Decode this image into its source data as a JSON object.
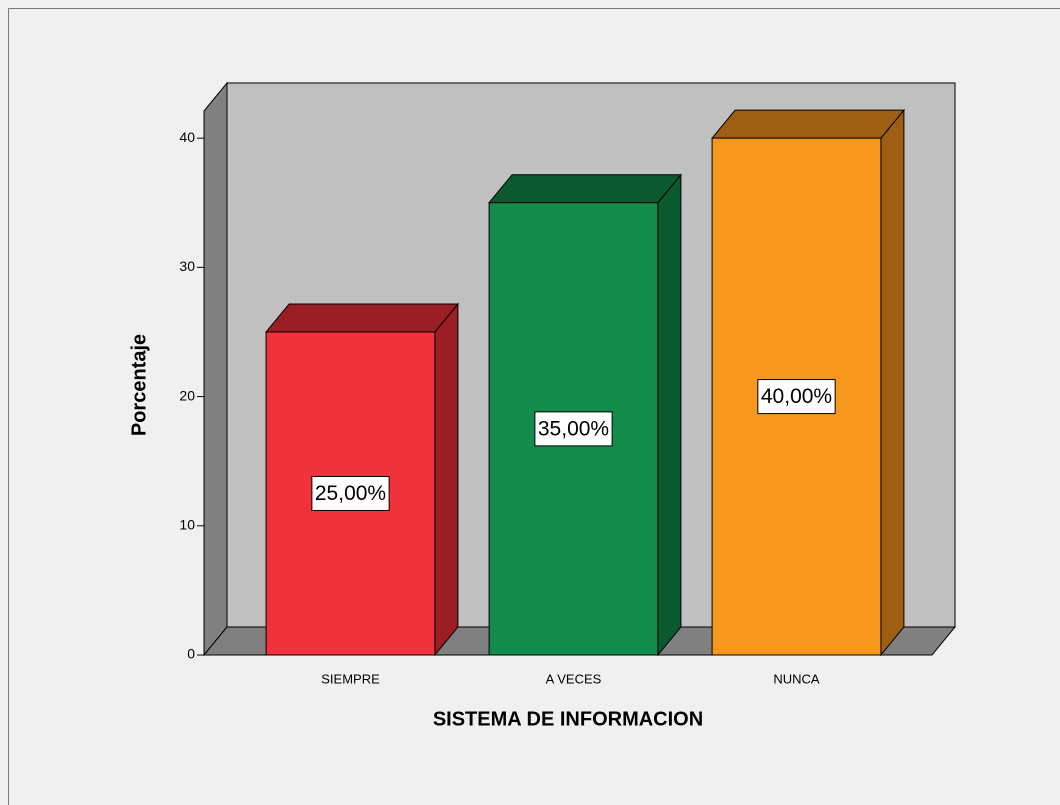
{
  "chart_data": {
    "type": "bar3d",
    "categories": [
      "SIEMPRE",
      "A VECES",
      "NUNCA"
    ],
    "values": [
      25,
      35,
      40
    ],
    "value_labels": [
      "25,00%",
      "35,00%",
      "40,00%"
    ],
    "colors": [
      "#f0323a",
      "#118c4a",
      "#f7981d"
    ],
    "side_colors": [
      "#9b1e24",
      "#0b5a2f",
      "#9e5f12"
    ],
    "ylim": [
      0,
      42.1
    ],
    "yticks": [
      0,
      10,
      20,
      30,
      40
    ],
    "ylabel": "Porcentaje",
    "xlabel": "SISTEMA DE INFORMACION"
  }
}
